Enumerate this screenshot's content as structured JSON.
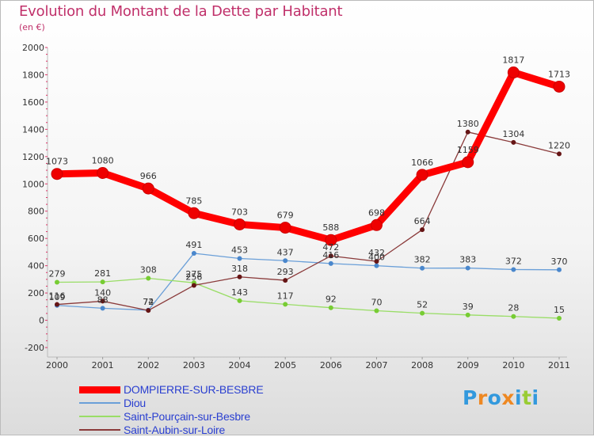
{
  "chart_data": {
    "type": "line",
    "title": "Evolution du Montant de la Dette par Habitant",
    "subtitle": "(en €)",
    "x": [
      "2000",
      "2001",
      "2002",
      "2003",
      "2004",
      "2005",
      "2006",
      "2007",
      "2008",
      "2009",
      "2010",
      "2011"
    ],
    "ylim": [
      -200,
      2000
    ],
    "yticks": [
      -200,
      0,
      200,
      400,
      600,
      800,
      1000,
      1200,
      1400,
      1600,
      1800,
      2000
    ],
    "grid": false,
    "legend_position": "bottom-left",
    "series": [
      {
        "name": "DOMPIERRE-SUR-BESBRE",
        "color": "#ff0000",
        "marker": "#dd0000",
        "values": [
          1073,
          1080,
          966,
          785,
          703,
          679,
          588,
          698,
          1066,
          1159,
          1817,
          1713
        ]
      },
      {
        "name": "Diou",
        "color": "#6a9fd8",
        "marker": "#4a87cc",
        "values": [
          109,
          88,
          74,
          491,
          453,
          437,
          416,
          400,
          382,
          383,
          372,
          370
        ]
      },
      {
        "name": "Saint-Pourçain-sur-Besbre",
        "color": "#99dd66",
        "marker": "#77cc33",
        "values": [
          279,
          281,
          308,
          275,
          143,
          117,
          92,
          70,
          52,
          39,
          28,
          15
        ]
      },
      {
        "name": "Saint-Aubin-sur-Loire",
        "color": "#8a3a3a",
        "marker": "#661515",
        "values": [
          116,
          140,
          72,
          256,
          318,
          293,
          472,
          432,
          664,
          1380,
          1304,
          1220
        ]
      }
    ]
  },
  "logo": {
    "letters": [
      "P",
      "r",
      "o",
      "x",
      "i",
      "t",
      "i"
    ],
    "colors": [
      "#3399dd",
      "#ee8822",
      "#3399dd",
      "#ee8822",
      "#3399dd",
      "#99cc33",
      "#3399dd"
    ]
  }
}
